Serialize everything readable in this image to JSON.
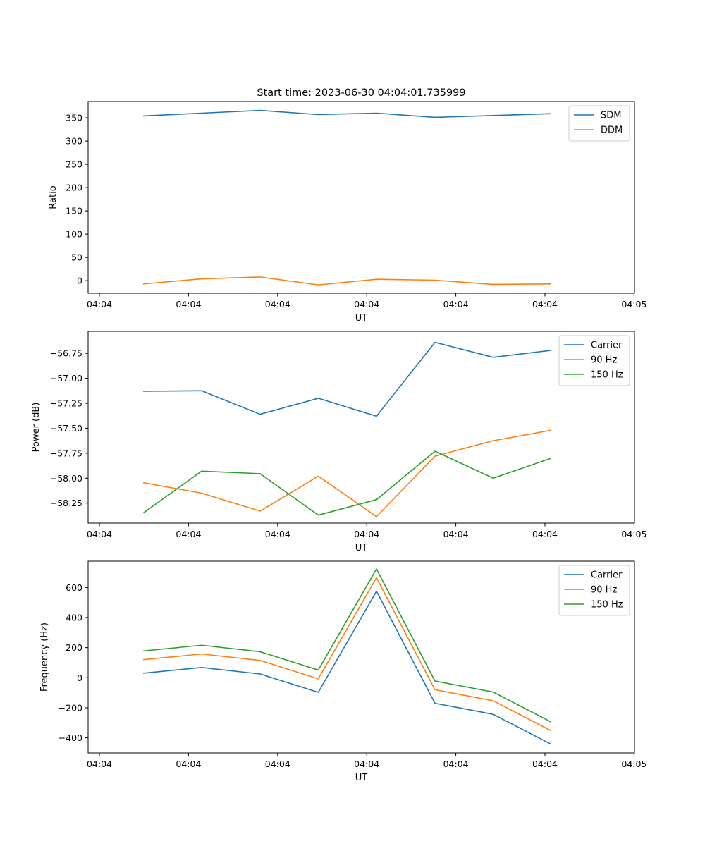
{
  "figure": {
    "title": "Start time: 2023-06-30 04:04:01.735999"
  },
  "chart_data": [
    {
      "type": "line",
      "xlabel": "UT",
      "ylabel": "Ratio",
      "x_tick_labels": [
        "04:04",
        "04:04",
        "04:04",
        "04:04",
        "04:04",
        "04:04",
        "04:05"
      ],
      "yticks": [
        0,
        50,
        100,
        150,
        200,
        250,
        300,
        350
      ],
      "ylim": [
        -27,
        385
      ],
      "grid": false,
      "legend_position": "top-right",
      "series": [
        {
          "name": "SDM",
          "color": "#1f77b4",
          "values": [
            354,
            360,
            366,
            357,
            360,
            351,
            355,
            359
          ]
        },
        {
          "name": "DDM",
          "color": "#ff7f0e",
          "values": [
            -7,
            4,
            8,
            -9,
            3,
            1,
            -8,
            -7
          ]
        }
      ]
    },
    {
      "type": "line",
      "xlabel": "UT",
      "ylabel": "Power (dB)",
      "x_tick_labels": [
        "04:04",
        "04:04",
        "04:04",
        "04:04",
        "04:04",
        "04:04",
        "04:05"
      ],
      "yticks": [
        -58.25,
        -58.0,
        -57.75,
        -57.5,
        -57.25,
        -57.0,
        -56.75
      ],
      "ytick_labels": [
        "−58.25",
        "−58.00",
        "−57.75",
        "−57.50",
        "−57.25",
        "−57.00",
        "−56.75"
      ],
      "ylim": [
        -58.45,
        -56.53
      ],
      "grid": false,
      "legend_position": "top-right",
      "series": [
        {
          "name": "Carrier",
          "color": "#1f77b4",
          "values": [
            -57.13,
            -57.125,
            -57.36,
            -57.2,
            -57.38,
            -56.64,
            -56.79,
            -56.72
          ]
        },
        {
          "name": "90 Hz",
          "color": "#ff7f0e",
          "values": [
            -58.045,
            -58.15,
            -58.33,
            -57.98,
            -58.385,
            -57.78,
            -57.625,
            -57.52
          ]
        },
        {
          "name": "150 Hz",
          "color": "#2ca02c",
          "values": [
            -58.35,
            -57.93,
            -57.955,
            -58.37,
            -58.215,
            -57.73,
            -58.0,
            -57.8
          ]
        }
      ]
    },
    {
      "type": "line",
      "xlabel": "UT",
      "ylabel": "Frequency (Hz)",
      "x_tick_labels": [
        "04:04",
        "04:04",
        "04:04",
        "04:04",
        "04:04",
        "04:04",
        "04:05"
      ],
      "yticks": [
        -400,
        -200,
        0,
        200,
        400,
        600
      ],
      "ytick_labels": [
        "−400",
        "−200",
        "0",
        "200",
        "400",
        "600"
      ],
      "ylim": [
        -500,
        775
      ],
      "grid": false,
      "legend_position": "top-right",
      "series": [
        {
          "name": "Carrier",
          "color": "#1f77b4",
          "values": [
            30,
            68,
            25,
            -97,
            575,
            -170,
            -243,
            -443
          ]
        },
        {
          "name": "90 Hz",
          "color": "#ff7f0e",
          "values": [
            120,
            158,
            115,
            -7,
            665,
            -80,
            -153,
            -353
          ]
        },
        {
          "name": "150 Hz",
          "color": "#2ca02c",
          "values": [
            178,
            216,
            173,
            51,
            723,
            -22,
            -95,
            -295
          ]
        }
      ]
    }
  ]
}
